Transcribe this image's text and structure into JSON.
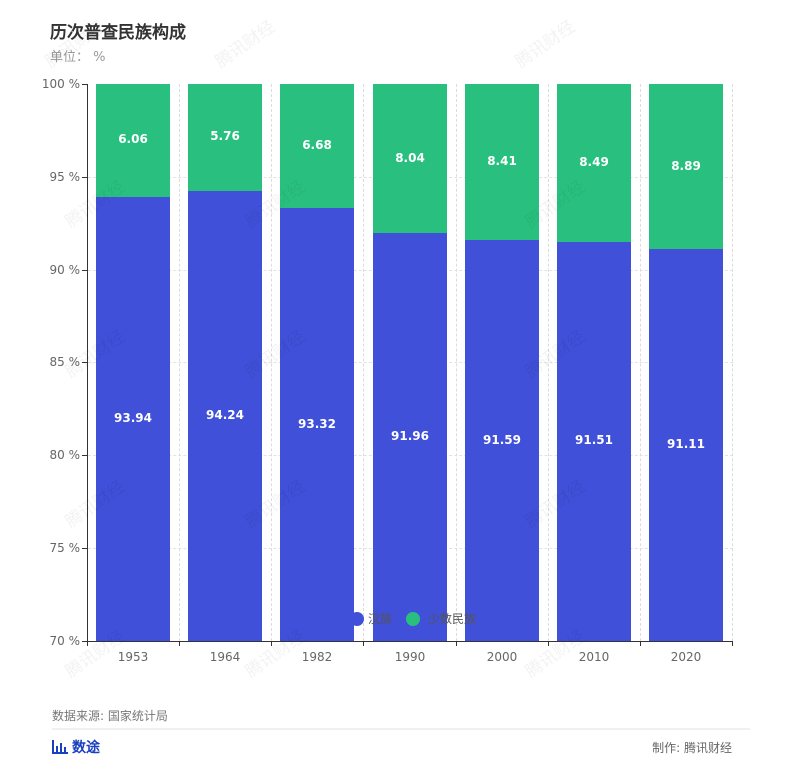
{
  "header": {
    "title": "历次普查民族构成",
    "unit": "单位： %"
  },
  "watermark": "腾讯财经",
  "colors": {
    "han": "#4050d8",
    "minority": "#29c07f",
    "axis": "#333333",
    "grid": "#e3e3e3"
  },
  "chart_data": {
    "type": "bar",
    "stacked": true,
    "title": "历次普查民族构成",
    "subtitle": "单位： %",
    "categories": [
      "1953",
      "1964",
      "1982",
      "1990",
      "2000",
      "2010",
      "2020"
    ],
    "series": [
      {
        "name": "汉族",
        "color": "#4050d8",
        "values": [
          93.94,
          94.24,
          93.32,
          91.96,
          91.59,
          91.51,
          91.11
        ]
      },
      {
        "name": "少数民族",
        "color": "#29c07f",
        "values": [
          6.06,
          5.76,
          6.68,
          8.04,
          8.41,
          8.49,
          8.89
        ]
      }
    ],
    "xlabel": "",
    "ylabel": "",
    "ylim": [
      70,
      100
    ],
    "yticks": [
      "100 %",
      "95 %",
      "90 %",
      "85 %",
      "80 %",
      "75 %",
      "70 %"
    ],
    "grid": true,
    "legend_position": "bottom-inside"
  },
  "labels": {
    "ticks": [
      "100 %",
      "95 %",
      "90 %",
      "85 %",
      "80 %",
      "75 %",
      "70 %"
    ],
    "years": [
      "1953",
      "1964",
      "1982",
      "1990",
      "2000",
      "2010",
      "2020"
    ],
    "han": [
      "93.94",
      "94.24",
      "93.32",
      "91.96",
      "91.59",
      "91.51",
      "91.11"
    ],
    "minority": [
      "6.06",
      "5.76",
      "6.68",
      "8.04",
      "8.41",
      "8.49",
      "8.89"
    ]
  },
  "legend": {
    "items": [
      {
        "label": "汉族",
        "color": "#4050d8"
      },
      {
        "label": "少数民族",
        "color": "#29c07f"
      }
    ]
  },
  "footer": {
    "source": "数据来源: 国家统计局",
    "brand": "数途",
    "credit": "制作: 腾讯财经"
  }
}
